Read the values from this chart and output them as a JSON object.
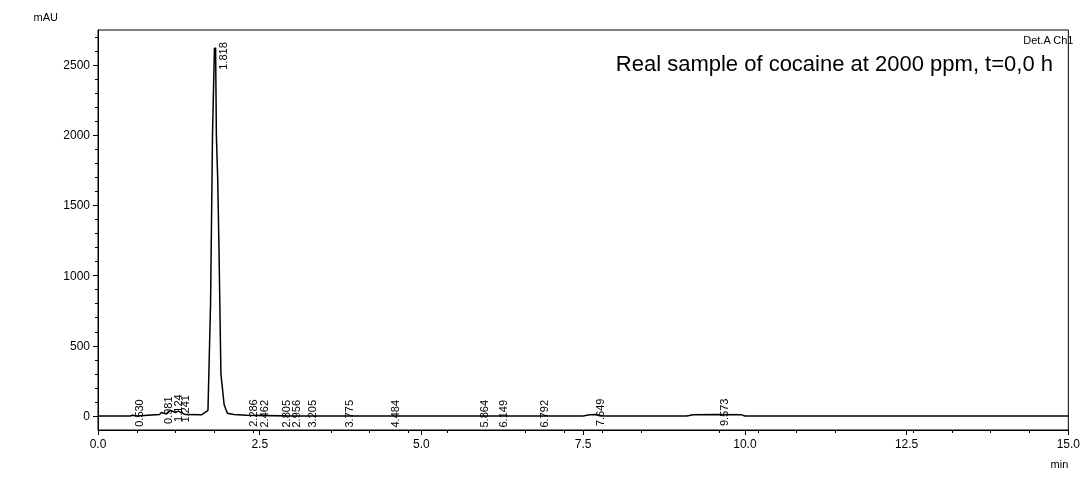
{
  "chart_data": {
    "type": "line",
    "xlabel": "min",
    "ylabel": "mAU",
    "xlim": [
      0,
      15
    ],
    "xticks": [
      {
        "value": 0,
        "label": "0.0"
      },
      {
        "value": 2.5,
        "label": "2.5"
      },
      {
        "value": 5,
        "label": "5.0"
      },
      {
        "value": 7.5,
        "label": "7.5"
      },
      {
        "value": 10,
        "label": "10.0"
      },
      {
        "value": 12.5,
        "label": "12.5"
      },
      {
        "value": 15,
        "label": "15.0"
      }
    ],
    "ylim": [
      -100,
      2750
    ],
    "yticks": [
      0,
      500,
      1000,
      1500,
      2000,
      2500
    ],
    "grid": false,
    "marker": "none",
    "line_style": "solid",
    "series": [
      {
        "color": "#000000",
        "x": [
          0,
          0.5,
          0.53,
          0.6,
          0.95,
          0.981,
          1.05,
          1.124,
          1.2,
          1.241,
          1.35,
          1.6,
          1.7,
          1.74,
          1.77,
          1.8,
          1.818,
          1.83,
          1.85,
          1.87,
          1.9,
          1.95,
          2,
          2.1,
          2.3,
          3,
          7.5,
          7.6,
          7.7,
          7.8,
          9.1,
          9.2,
          9.573,
          9.95,
          10,
          15
        ],
        "values": [
          0,
          0,
          5,
          0,
          10,
          25,
          15,
          40,
          25,
          35,
          10,
          8,
          40,
          800,
          2000,
          2620,
          2620,
          2000,
          1700,
          1200,
          300,
          80,
          20,
          10,
          5,
          0,
          0,
          8,
          10,
          0,
          0,
          8,
          10,
          8,
          0,
          0
        ]
      }
    ],
    "annotations": [
      "Real sample of cocaine at 2000 ppm, t=0,0 h",
      "Det.A Ch1",
      {
        "text": "0.530",
        "x": 0.53,
        "y": 5
      },
      {
        "text": "0.981",
        "x": 0.981,
        "y": 25
      },
      {
        "text": "1.124",
        "x": 1.124,
        "y": 40
      },
      {
        "text": "1.241",
        "x": 1.241,
        "y": 35
      },
      {
        "text": "1.818",
        "x": 1.818,
        "y": 2620
      },
      {
        "text": "2.286",
        "x": 2.286,
        "y": 5
      },
      {
        "text": "2.462",
        "x": 2.462,
        "y": 0
      },
      {
        "text": "2.805",
        "x": 2.805,
        "y": 0
      },
      {
        "text": "2.956",
        "x": 2.956,
        "y": 0
      },
      {
        "text": "3.205",
        "x": 3.205,
        "y": 0
      },
      {
        "text": "3.775",
        "x": 3.775,
        "y": 0
      },
      {
        "text": "4.484",
        "x": 4.484,
        "y": 0
      },
      {
        "text": "5.864",
        "x": 5.864,
        "y": 0
      },
      {
        "text": "6.149",
        "x": 6.149,
        "y": 0
      },
      {
        "text": "6.792",
        "x": 6.792,
        "y": 0
      },
      {
        "text": "7.649",
        "x": 7.649,
        "y": 10
      },
      {
        "text": "9.573",
        "x": 9.573,
        "y": 10
      }
    ]
  }
}
